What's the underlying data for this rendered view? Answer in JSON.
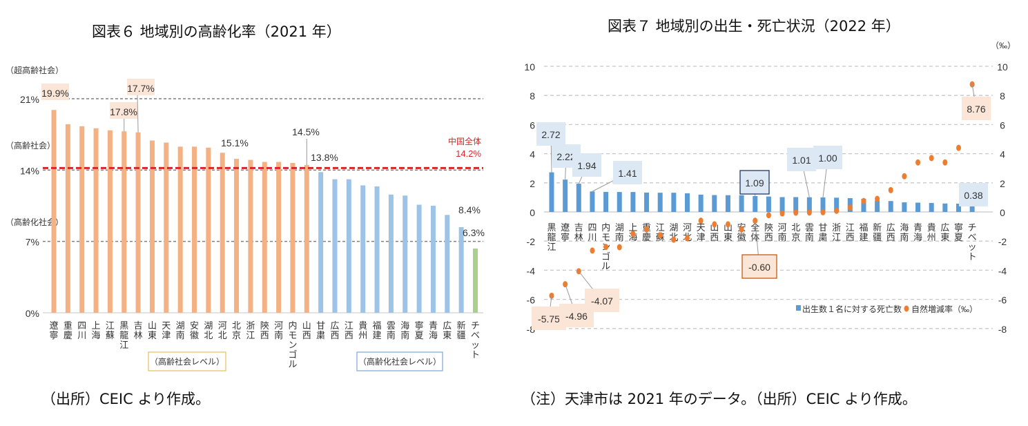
{
  "chart_data": [
    {
      "type": "bar",
      "title": "図表６ 地域別の高齢化率（2021 年）",
      "xlabel": "",
      "ylabel": "",
      "ylim": [
        0,
        21
      ],
      "yticks": [
        "0%",
        "7%",
        "14%",
        "21%"
      ],
      "ytick_values": [
        0,
        7,
        14,
        21
      ],
      "band_labels": [
        "（超高齢社会）",
        "（高齢社会）",
        "（高齢化社会）"
      ],
      "categories": [
        "遼寧",
        "重慶",
        "四川",
        "上海",
        "江蘇",
        "黒龍江",
        "吉林",
        "山東",
        "天津",
        "湖南",
        "安徽",
        "湖北",
        "河北",
        "北京",
        "浙江",
        "陝西",
        "河南",
        "内モンゴル",
        "山西",
        "甘粛",
        "広西",
        "江西",
        "貴州",
        "福建",
        "雲南",
        "海南",
        "寧夏",
        "青海",
        "広東",
        "新疆",
        "チベット"
      ],
      "values": [
        19.9,
        18.5,
        18.3,
        18.1,
        17.9,
        17.8,
        17.7,
        16.9,
        16.7,
        16.3,
        16.3,
        16.2,
        15.7,
        15.1,
        15.0,
        14.8,
        14.8,
        14.7,
        14.5,
        13.8,
        13.1,
        13.1,
        12.5,
        12.4,
        11.6,
        11.5,
        10.6,
        10.5,
        9.6,
        8.4,
        6.3
      ],
      "groups": [
        {
          "name": "高齢社会レベル",
          "from": 0,
          "to": 18,
          "color": "#f4b183"
        },
        {
          "name": "高齢化社会レベル",
          "from": 19,
          "to": 29,
          "color": "#9dc3e6"
        },
        {
          "name": "",
          "from": 30,
          "to": 30,
          "color": "#a9d18e"
        }
      ],
      "data_labels": [
        {
          "index": 0,
          "text": "19.9%",
          "boxed": true
        },
        {
          "index": 5,
          "text": "17.8%",
          "boxed": true
        },
        {
          "index": 6,
          "text": "17.7%",
          "boxed": true
        },
        {
          "index": 13,
          "text": "15.1%",
          "boxed": false
        },
        {
          "index": 18,
          "text": "14.5%",
          "boxed": false
        },
        {
          "index": 19,
          "text": "13.8%",
          "boxed": false
        },
        {
          "index": 29,
          "text": "8.4%",
          "boxed": false
        },
        {
          "index": 30,
          "text": "6.3%",
          "boxed": false
        }
      ],
      "reference_line": {
        "label": "中国全体",
        "value_label": "14.2%",
        "value": 14.2,
        "color": "#d62728"
      },
      "group_legend": [
        "（高齢社会レベル）",
        "（高齢化社会レベル）"
      ],
      "grid": "dashed at 7, 14, 21"
    },
    {
      "type": "bar+scatter",
      "title": "図表７ 地域別の出生・死亡状況（2022 年）",
      "unit_label": "（‰）",
      "ylim": [
        -8,
        10
      ],
      "yticks": [
        "-8",
        "-6",
        "-4",
        "-2",
        "0",
        "2",
        "4",
        "6",
        "8",
        "10"
      ],
      "ytick_values": [
        -8,
        -6,
        -4,
        -2,
        0,
        2,
        4,
        6,
        8,
        10
      ],
      "categories": [
        "黒龍江",
        "遼寧",
        "吉林",
        "四川",
        "内モンゴル",
        "湖南",
        "上海",
        "重慶",
        "江蘇",
        "湖北",
        "河北",
        "天津",
        "山西",
        "山東",
        "安徽",
        "全体",
        "陝西",
        "河南",
        "北京",
        "雲南",
        "甘粛",
        "浙江",
        "江西",
        "福建",
        "新疆",
        "広西",
        "海南",
        "青海",
        "貴州",
        "広東",
        "寧夏",
        "チベット"
      ],
      "series": [
        {
          "name": "出生数１名に対する死亡数",
          "type": "bar",
          "color": "#5b9bd5",
          "values": [
            2.72,
            2.22,
            1.94,
            1.41,
            1.38,
            1.37,
            1.37,
            1.33,
            1.32,
            1.32,
            1.28,
            1.19,
            1.16,
            1.15,
            1.15,
            1.09,
            1.06,
            1.02,
            1.02,
            1.01,
            1.0,
            0.98,
            0.95,
            0.9,
            0.78,
            0.75,
            0.66,
            0.64,
            0.62,
            0.58,
            0.57,
            0.38
          ]
        },
        {
          "name": "自然増減率（‰）",
          "type": "scatter",
          "color": "#ed7d31",
          "values": [
            -5.75,
            -4.96,
            -4.07,
            -2.65,
            -2.4,
            -2.42,
            -1.5,
            -1.2,
            -1.6,
            -1.9,
            -1.8,
            -0.6,
            -0.85,
            -0.85,
            -1.2,
            -0.6,
            -0.22,
            -0.1,
            -0.05,
            -0.04,
            -0.02,
            0.08,
            0.3,
            0.75,
            0.9,
            1.5,
            2.45,
            3.4,
            3.7,
            3.4,
            4.4,
            8.76
          ]
        }
      ],
      "data_labels": [
        {
          "series": 0,
          "index": 0,
          "text": "2.72"
        },
        {
          "series": 0,
          "index": 1,
          "text": "2.22"
        },
        {
          "series": 0,
          "index": 2,
          "text": "1.94"
        },
        {
          "series": 0,
          "index": 3,
          "text": "1.41"
        },
        {
          "series": 0,
          "index": 15,
          "text": "1.09"
        },
        {
          "series": 0,
          "index": 19,
          "text": "1.01"
        },
        {
          "series": 0,
          "index": 20,
          "text": "1.00"
        },
        {
          "series": 0,
          "index": 31,
          "text": "0.38"
        },
        {
          "series": 1,
          "index": 0,
          "text": "-5.75"
        },
        {
          "series": 1,
          "index": 1,
          "text": "-4.96"
        },
        {
          "series": 1,
          "index": 2,
          "text": "-4.07"
        },
        {
          "series": 1,
          "index": 15,
          "text": "-0.60"
        },
        {
          "series": 1,
          "index": 31,
          "text": "8.76"
        }
      ],
      "legend": [
        "出生数１名に対する死亡数",
        "自然増減率（‰）"
      ],
      "legend_position": "bottom-right",
      "grid": "dashed"
    }
  ],
  "notes": {
    "left_source": "（出所）CEIC より作成。",
    "right_source": "（注）天津市は 2021 年のデータ。（出所）CEIC より作成。"
  }
}
